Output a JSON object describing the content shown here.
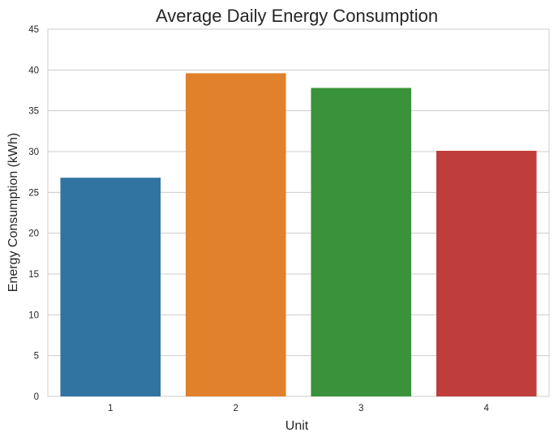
{
  "chart_data": {
    "type": "bar",
    "title": "Average Daily Energy Consumption",
    "xlabel": "Unit",
    "ylabel": "Energy Consumption (kWh)",
    "categories": [
      "1",
      "2",
      "3",
      "4"
    ],
    "values": [
      26.8,
      39.6,
      37.8,
      30.1
    ],
    "colors": [
      "#3274a1",
      "#e1812c",
      "#3a923a",
      "#c03d3e"
    ],
    "ylim": [
      0,
      45
    ],
    "yticks": [
      0,
      5,
      10,
      15,
      20,
      25,
      30,
      35,
      40,
      45
    ],
    "grid": true,
    "gridlines": "horizontal",
    "style": "whitegrid",
    "legend": "none"
  }
}
